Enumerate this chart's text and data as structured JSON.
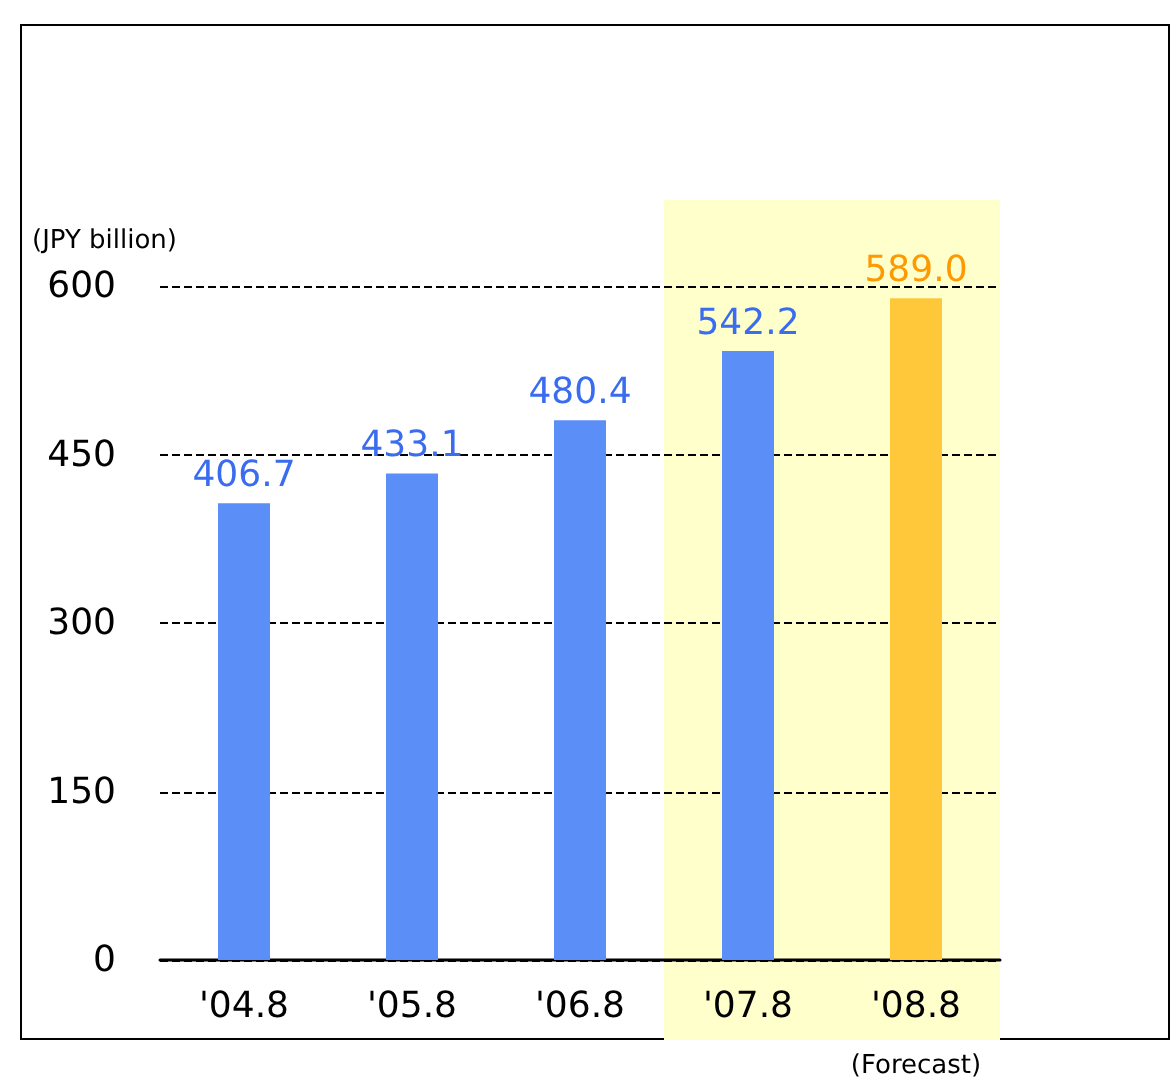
{
  "chart_data": {
    "type": "bar",
    "ylabel": "(JPY billion)",
    "categories": [
      "'04.8",
      "'05.8",
      "'06.8",
      "'07.8",
      "'08.8"
    ],
    "values": [
      406.7,
      433.1,
      480.4,
      542.2,
      589.0
    ],
    "colors": [
      "#5b8ef7",
      "#5b8ef7",
      "#5b8ef7",
      "#5b8ef7",
      "#ffc83a"
    ],
    "value_labels": [
      "406.7",
      "433.1",
      "480.4",
      "542.2",
      "589.0"
    ],
    "ylim": [
      0,
      600
    ],
    "yticks": [
      0,
      150,
      300,
      450,
      600
    ],
    "grid": "y",
    "bands": [
      {
        "axis": "x",
        "from": "'07.8",
        "to": "'08.8",
        "color": "#ffffcc"
      }
    ],
    "annotations": [
      "(Forecast)"
    ]
  }
}
